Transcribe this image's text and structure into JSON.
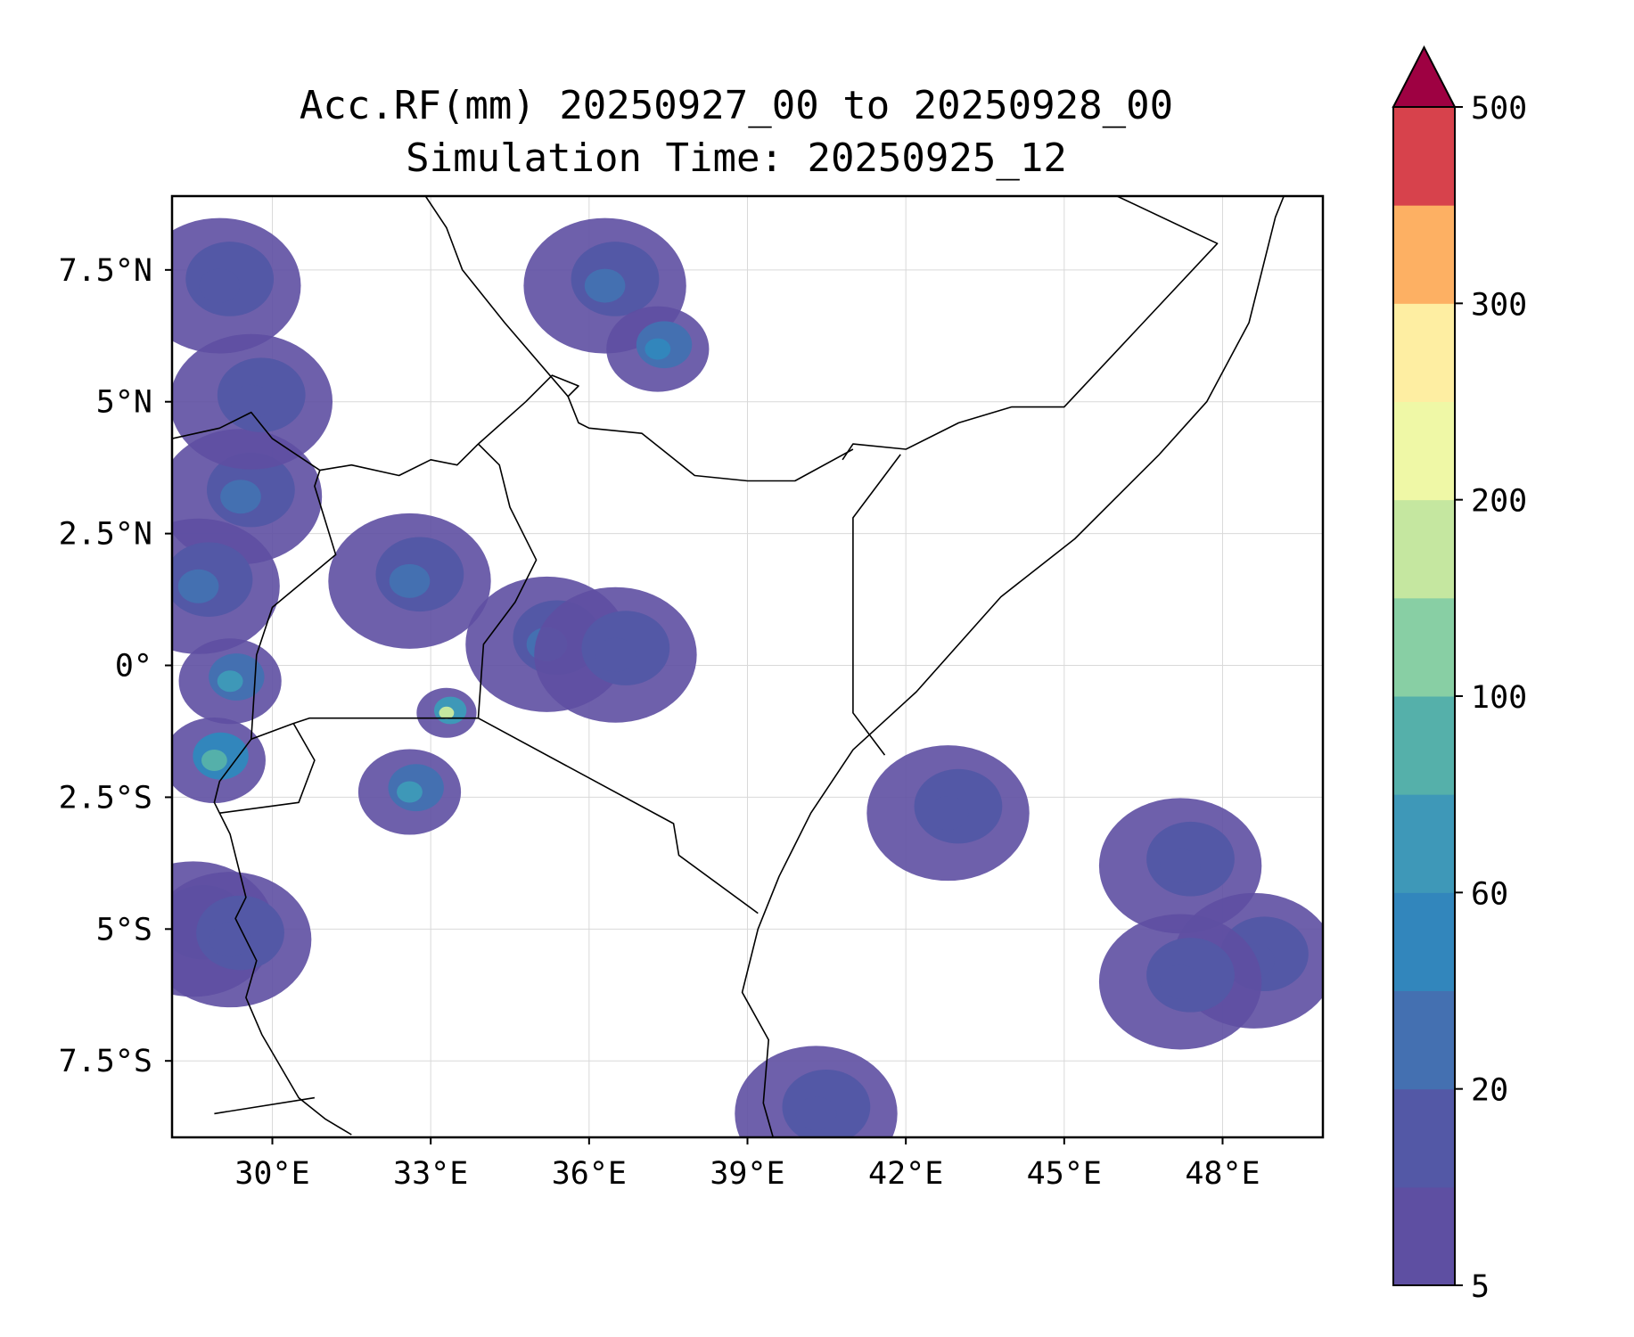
{
  "title": {
    "line1": "Acc.RF(mm) 20250927_00 to 20250928_00",
    "line2": "Simulation Time: 20250925_12"
  },
  "map": {
    "lon_range": [
      28.1,
      49.9
    ],
    "lat_range": [
      -8.95,
      8.9
    ],
    "x_ticks": [
      {
        "value": 30,
        "label": "30°E"
      },
      {
        "value": 33,
        "label": "33°E"
      },
      {
        "value": 36,
        "label": "36°E"
      },
      {
        "value": 39,
        "label": "39°E"
      },
      {
        "value": 42,
        "label": "42°E"
      },
      {
        "value": 45,
        "label": "45°E"
      },
      {
        "value": 48,
        "label": "48°E"
      }
    ],
    "y_ticks": [
      {
        "value": 7.5,
        "label": "7.5°N"
      },
      {
        "value": 5,
        "label": "5°N"
      },
      {
        "value": 2.5,
        "label": "2.5°N"
      },
      {
        "value": 0,
        "label": "0°"
      },
      {
        "value": -2.5,
        "label": "2.5°S"
      },
      {
        "value": -5,
        "label": "5°S"
      },
      {
        "value": -7.5,
        "label": "7.5°S"
      }
    ],
    "gridlines": true
  },
  "colorbar": {
    "levels": [
      5,
      10,
      20,
      40,
      60,
      80,
      100,
      150,
      200,
      250,
      300,
      400,
      500
    ],
    "colors": [
      "#5e4fa2",
      "#5358a6",
      "#4470b1",
      "#3286bc",
      "#3e98b8",
      "#55b0aa",
      "#88cfa4",
      "#c5e7a0",
      "#eff8a6",
      "#feeea2",
      "#fdb063",
      "#d7424c"
    ],
    "extend_color": "#9e0142",
    "extend": "max",
    "tick_labels": [
      "5",
      "20",
      "60",
      "100",
      "200",
      "300",
      "500"
    ]
  },
  "chart_data": {
    "type": "heatmap",
    "title": "Acc.RF(mm) 20250927_00 to 20250928_00",
    "subtitle": "Simulation Time: 20250925_12",
    "xlim": [
      28.1,
      49.9
    ],
    "ylim": [
      -8.95,
      8.9
    ],
    "color_levels": [
      5,
      10,
      20,
      40,
      60,
      80,
      100,
      150,
      200,
      250,
      300,
      400,
      500
    ],
    "colorbar_ticks": [
      5,
      20,
      60,
      100,
      200,
      300,
      500
    ],
    "rain_areas": [
      {
        "lon": 29.4,
        "lat": 3.2,
        "value": 20
      },
      {
        "lon": 28.6,
        "lat": 1.5,
        "value": 20
      },
      {
        "lon": 28.9,
        "lat": -1.8,
        "value": 80
      },
      {
        "lon": 29.2,
        "lat": -0.3,
        "value": 60
      },
      {
        "lon": 32.6,
        "lat": 1.6,
        "value": 20
      },
      {
        "lon": 33.3,
        "lat": -0.9,
        "value": 150
      },
      {
        "lon": 32.6,
        "lat": -2.4,
        "value": 60
      },
      {
        "lon": 35.2,
        "lat": 0.4,
        "value": 20
      },
      {
        "lon": 36.5,
        "lat": 0.2,
        "value": 10
      },
      {
        "lon": 36.3,
        "lat": 7.2,
        "value": 20
      },
      {
        "lon": 37.3,
        "lat": 6.0,
        "value": 40
      },
      {
        "lon": 29.0,
        "lat": 7.2,
        "value": 10
      },
      {
        "lon": 29.6,
        "lat": 5.0,
        "value": 10
      },
      {
        "lon": 28.5,
        "lat": -5.0,
        "value": 10
      },
      {
        "lon": 29.2,
        "lat": -5.2,
        "value": 10
      },
      {
        "lon": 42.8,
        "lat": -2.8,
        "value": 10
      },
      {
        "lon": 47.2,
        "lat": -3.8,
        "value": 10
      },
      {
        "lon": 48.6,
        "lat": -5.6,
        "value": 10
      },
      {
        "lon": 47.2,
        "lat": -6.0,
        "value": 10
      },
      {
        "lon": 40.3,
        "lat": -8.5,
        "value": 10
      }
    ]
  }
}
